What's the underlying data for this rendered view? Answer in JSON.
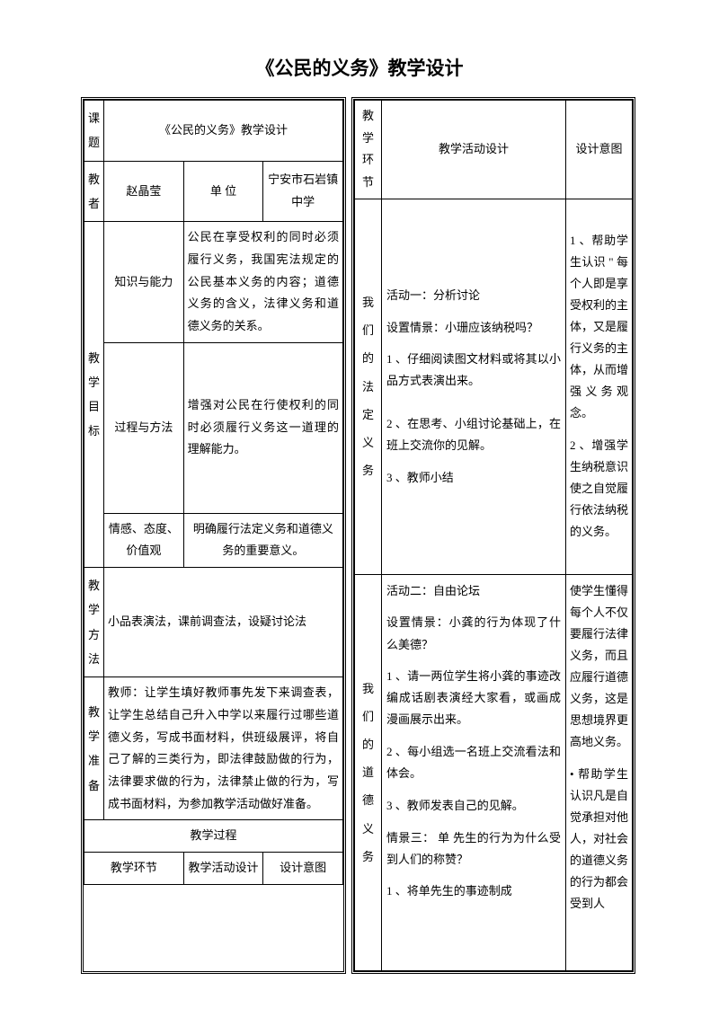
{
  "title": "《公民的义务》教学设计",
  "left": {
    "row1": {
      "label": "课题",
      "value": "《公民的义务》教学设计"
    },
    "row2": {
      "label": "教者",
      "name": "赵晶莹",
      "unitLabel": "单 位",
      "unit": "宁安市石岩镇中学"
    },
    "goals": {
      "label": "教学目标",
      "r1": {
        "label": "知识与能力",
        "text": "公民在享受权利的同时必须履行义务，我国宪法规定的公民基本义务的内容；道德义务的含义，法律义务和道德义务的关系。"
      },
      "r2": {
        "label": "过程与方法",
        "text": "增强对公民在行使权利的同时必须履行义务这一道理的理解能力。"
      },
      "r3": {
        "label": "情感、态度、价值观",
        "text": "明确履行法定义务和道德义务的重要意义。"
      }
    },
    "method": {
      "label": "教学方法",
      "text": "小品表演法，课前调查法，设疑讨论法"
    },
    "prep": {
      "label": "教学准备",
      "text": "教师：让学生填好教师事先发下来调查表，让学生总结自己升入中学以来履行过哪些道德义务，写成书面材料，供班级展评，将自己了解的三类行为，即法律鼓励做的行为，法律要求做的行为，法律禁止做的行为，写成书面材料，为参加教学活动做好准备。"
    },
    "processHeader": "教学过程",
    "processCols": {
      "c1": "教学环节",
      "c2": "教学活动设计",
      "c3": "设计意图"
    }
  },
  "right": {
    "header": {
      "c1": "教学环节",
      "c2": "教学活动设计",
      "c3": "设计意图"
    },
    "row1": {
      "section": "我们的法定义务",
      "activity": "活动一：分析讨论\n\n设置情景：小珊应该纳税吗？\n\n1 、仔细阅读图文材料或将其以小品方式表演出来。\n\n\n2 、在思考、小组讨论基础上，在班上交流你的见解。\n\n3 、教师小结",
      "intent": "1 、帮助学生认识 \" 每个人即是享受权利的主体，又是履行义务的主体，从而增强义务观念。\n\n2 、增强学生纳税意识使之自觉履行依法纳税的义务。"
    },
    "row2": {
      "section": "我们的道德义务",
      "activity": "活动二：自由论坛\n\n设置情景：小龚的行为体现了什么美德？\n\n1 、请一两位学生将小龚的事迹改编成话剧表演经大家看，或画成漫画展示出来。\n\n2 、每小组选一名班上交流看法和体会。\n\n3 、教师发表自己的见解。\n\n情景三：  单  先生的行为为什么受到人们的称赞？\n\n1 、将单先生的事迹制成",
      "intent": "使学生懂得每个人不仅要履行法律义务，而且应履行道德义务，这是思想境界更高地义务。\n\n•    帮助学生认识凡是自觉承担对他人，对社会的道德义务的行为都会受到人"
    }
  }
}
